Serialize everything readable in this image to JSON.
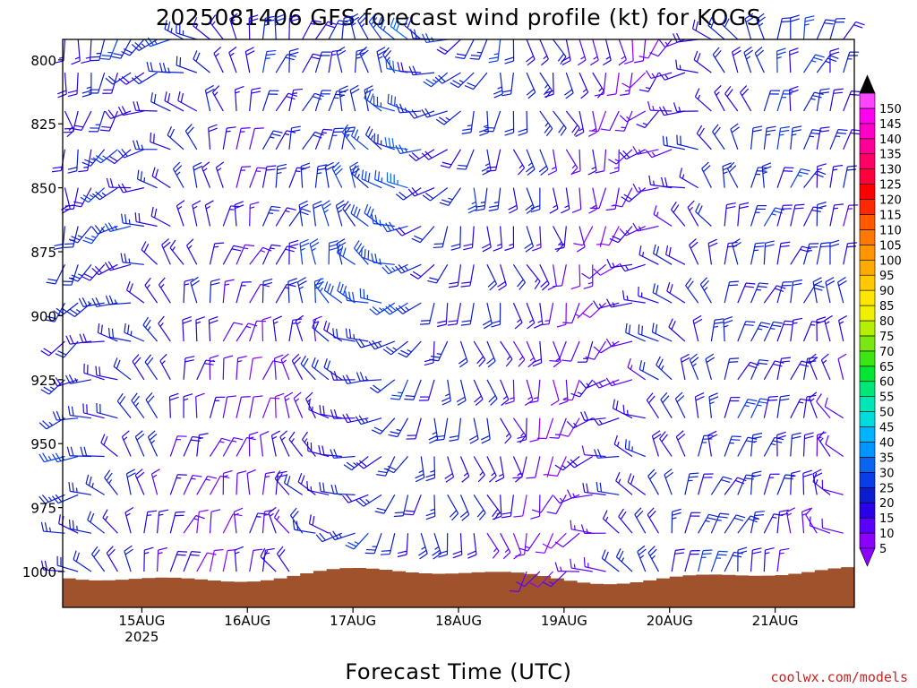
{
  "chart_data": {
    "type": "wind-barb time-height profile",
    "title": "2025081406 GFS forecast wind profile (kt) for KOGS",
    "xlabel": "Forecast Time (UTC)",
    "x_ticks": [
      {
        "label": "15AUG",
        "sub": "2025",
        "t": 18
      },
      {
        "label": "16AUG",
        "sub": "",
        "t": 42
      },
      {
        "label": "17AUG",
        "sub": "",
        "t": 66
      },
      {
        "label": "18AUG",
        "sub": "",
        "t": 90
      },
      {
        "label": "19AUG",
        "sub": "",
        "t": 114
      },
      {
        "label": "20AUG",
        "sub": "",
        "t": 138
      },
      {
        "label": "21AUG",
        "sub": "",
        "t": 162
      }
    ],
    "x_range_hours": [
      0,
      180
    ],
    "y_levels_hpa": [
      800,
      825,
      850,
      875,
      900,
      925,
      950,
      975,
      1000
    ],
    "y_range_hpa": [
      792,
      1014
    ],
    "barb_levels_hpa": [
      792,
      805,
      820,
      835,
      850,
      865,
      880,
      895,
      910,
      925,
      940,
      955,
      970,
      985,
      1000
    ],
    "time_step_hours": 3,
    "colorbar": {
      "values": [
        5,
        10,
        15,
        20,
        25,
        30,
        35,
        40,
        45,
        50,
        55,
        60,
        65,
        70,
        75,
        80,
        85,
        90,
        95,
        100,
        105,
        110,
        115,
        120,
        125,
        130,
        135,
        140,
        145,
        150
      ],
      "colors": [
        "#8b00ff",
        "#5a00ff",
        "#2a00e8",
        "#0a1ecf",
        "#0a3ce8",
        "#0a64f0",
        "#0096ff",
        "#00b4ff",
        "#00dcdc",
        "#00e6b4",
        "#00e678",
        "#00e632",
        "#3ce614",
        "#7ae614",
        "#b4f000",
        "#f0f000",
        "#ffe600",
        "#ffc800",
        "#ffaa00",
        "#ff9600",
        "#ff7800",
        "#ff5a00",
        "#ff2800",
        "#ff0000",
        "#ff003c",
        "#ff0064",
        "#ff0096",
        "#ff00c8",
        "#ff00f0",
        "#ff46ff"
      ],
      "under_color": "#8b00ff",
      "over_color": "#000000"
    },
    "terrain_color": "#a0522d",
    "credit": "coolwx.com/models"
  }
}
